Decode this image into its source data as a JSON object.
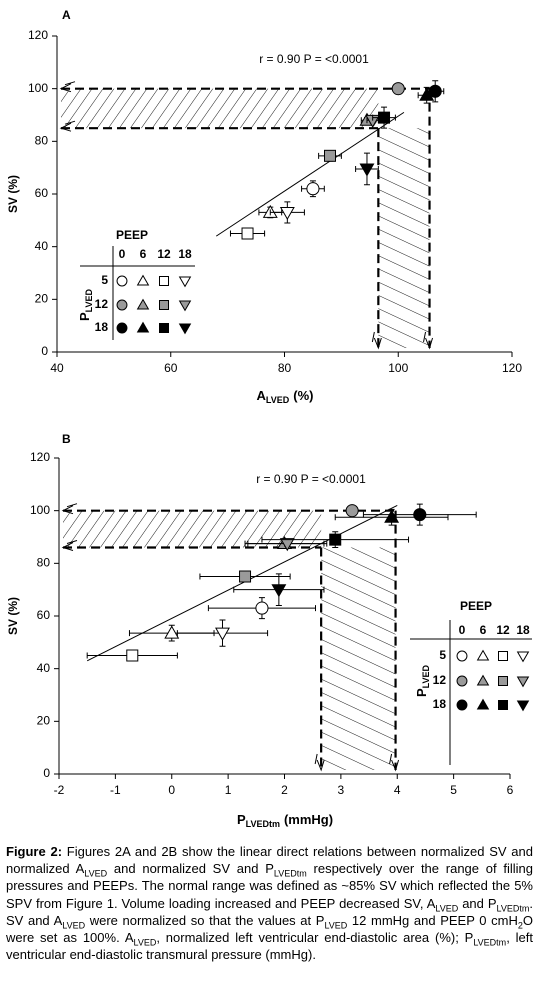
{
  "chart_data": [
    {
      "type": "scatter",
      "panel": "A",
      "annotation": "r = 0.90 P = <0.0001",
      "y_label": "SV (%)",
      "x_label": {
        "main": "A",
        "sub": "LVED",
        "unit": "(%)"
      },
      "xlim": [
        40,
        120
      ],
      "ylim": [
        0,
        120
      ],
      "xticks": [
        40,
        60,
        80,
        100,
        120
      ],
      "yticks": [
        0,
        20,
        40,
        60,
        80,
        100,
        120
      ],
      "markers": [
        "circle",
        "triangle",
        "square",
        "triangle-down"
      ],
      "legend_title": "PEEP",
      "legend_columns": [
        "0",
        "6",
        "12",
        "18"
      ],
      "legend_row_title": {
        "main": "P",
        "sub": "LVED"
      },
      "series": [
        {
          "name": "5",
          "color": "#ffffff",
          "x": [
            85,
            77.5,
            73.5,
            80.5
          ],
          "values": [
            62,
            53,
            45,
            53
          ],
          "xerr": [
            2,
            2,
            3,
            3
          ],
          "yerr": [
            3,
            2,
            2,
            4
          ]
        },
        {
          "name": "12",
          "color": "#9a9a9a",
          "x": [
            100,
            94.5,
            88,
            95.5
          ],
          "values": [
            100,
            88,
            74.5,
            88
          ],
          "xerr": [
            0,
            1,
            2,
            1
          ],
          "yerr": [
            0,
            1,
            2,
            1
          ]
        },
        {
          "name": "18",
          "color": "#000000",
          "x": [
            106.5,
            105,
            97.5,
            94.5
          ],
          "values": [
            99,
            97.5,
            89,
            69.5
          ],
          "xerr": [
            1.5,
            1.5,
            2,
            2
          ],
          "yerr": [
            4,
            3,
            4,
            6
          ]
        }
      ],
      "fit": {
        "x": [
          68,
          101
        ],
        "y": [
          44,
          91
        ]
      },
      "ref_y": [
        85,
        100
      ],
      "ref_x": [
        96.5,
        105.5
      ]
    },
    {
      "type": "scatter",
      "panel": "B",
      "annotation": "r = 0.90 P = <0.0001",
      "y_label": "SV (%)",
      "x_label": {
        "main": "P",
        "sub": "LVEDtm",
        "unit": "(mmHg)"
      },
      "xlim": [
        -2,
        6
      ],
      "ylim": [
        0,
        120
      ],
      "xticks": [
        -2,
        -1,
        0,
        1,
        2,
        3,
        4,
        5,
        6
      ],
      "yticks": [
        0,
        20,
        40,
        60,
        80,
        100,
        120
      ],
      "markers": [
        "circle",
        "triangle",
        "square",
        "triangle-down"
      ],
      "legend_title": "PEEP",
      "legend_columns": [
        "0",
        "6",
        "12",
        "18"
      ],
      "legend_row_title": {
        "main": "P",
        "sub": "LVED"
      },
      "series": [
        {
          "name": "5",
          "color": "#ffffff",
          "x": [
            1.6,
            0,
            -0.7,
            0.9
          ],
          "values": [
            63,
            53.5,
            45,
            53.5
          ],
          "xerr": [
            0.95,
            0.75,
            0.8,
            0.8
          ],
          "yerr": [
            4,
            3,
            2,
            5
          ]
        },
        {
          "name": "12",
          "color": "#9a9a9a",
          "x": [
            3.2,
            2,
            1.3,
            2.05
          ],
          "values": [
            100,
            87.5,
            75,
            87.5
          ],
          "xerr": [
            0,
            0.7,
            0.8,
            0.7
          ],
          "yerr": [
            0,
            1,
            2,
            1
          ]
        },
        {
          "name": "18",
          "color": "#000000",
          "x": [
            4.4,
            3.9,
            2.9,
            1.9
          ],
          "values": [
            98.5,
            97.5,
            89,
            70
          ],
          "xerr": [
            1,
            1,
            1.3,
            0.8
          ],
          "yerr": [
            4,
            3,
            3,
            6
          ]
        }
      ],
      "fit": {
        "x": [
          -1.5,
          4.0
        ],
        "y": [
          43,
          102
        ]
      },
      "ref_y": [
        86,
        100
      ],
      "ref_x": [
        2.65,
        3.97
      ]
    }
  ],
  "caption": [
    {
      "text": "Figure 2:",
      "bold": true
    },
    {
      "text": " Figures 2A and 2B show the linear direct relations between normalized SV and normalized A"
    },
    {
      "text": "LVED",
      "sub": true
    },
    {
      "text": " and normalized SV and P"
    },
    {
      "text": "LVEDtm",
      "sub": true
    },
    {
      "text": " respectively over the range of filling pressures and PEEPs. The normal range was defined as ~85% SV which reflected the 5% SPV from Figure 1. Volume loading increased and PEEP decreased SV, A"
    },
    {
      "text": "LVED",
      "sub": true
    },
    {
      "text": " and P"
    },
    {
      "text": "LVEDtm",
      "sub": true
    },
    {
      "text": ". SV and A"
    },
    {
      "text": "LVED",
      "sub": true
    },
    {
      "text": " were normalized so that the values at P"
    },
    {
      "text": "LVED",
      "sub": true
    },
    {
      "text": " 12 mmHg and PEEP 0 cmH"
    },
    {
      "text": "2",
      "sub": true
    },
    {
      "text": "O were set as 100%. A"
    },
    {
      "text": "LVED",
      "sub": true
    },
    {
      "text": ", normalized left ventricular end-diastolic area (%); P"
    },
    {
      "text": "LVEDtm",
      "sub": true
    },
    {
      "text": ", left ventricular end-diastolic transmural pressure (mmHg)."
    }
  ]
}
